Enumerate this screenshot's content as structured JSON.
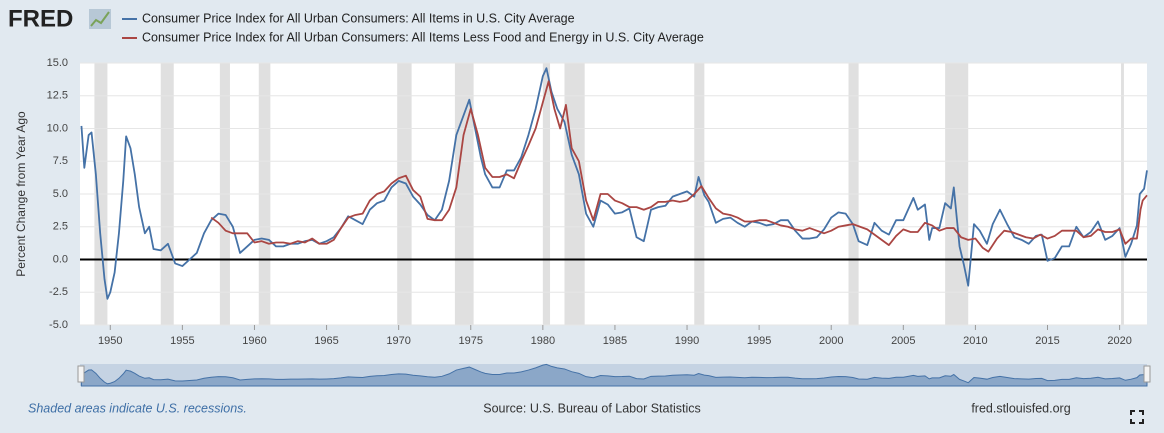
{
  "header": {
    "logo": "FRED"
  },
  "footer": {
    "recession_note": "Shaded areas indicate U.S. recessions.",
    "source": "Source: U.S. Bureau of Labor Statistics",
    "site": "fred.stlouisfed.org"
  },
  "chart_data": {
    "type": "line",
    "y_label": "Percent Change from Year Ago",
    "xlim": [
      1947.9,
      2021.9
    ],
    "xticks": [
      1950,
      1955,
      1960,
      1965,
      1970,
      1975,
      1980,
      1985,
      1990,
      1995,
      2000,
      2005,
      2010,
      2015,
      2020
    ],
    "ylim": [
      -5,
      15
    ],
    "yticks": [
      {
        "value": -5,
        "label": "-5.0"
      },
      {
        "value": -2.5,
        "label": "-2.5"
      },
      {
        "value": 0,
        "label": "0.0"
      },
      {
        "value": 2.5,
        "label": "2.5"
      },
      {
        "value": 5,
        "label": "5.0"
      },
      {
        "value": 7.5,
        "label": "7.5"
      },
      {
        "value": 10,
        "label": "10.0"
      },
      {
        "value": 12.5,
        "label": "12.5"
      },
      {
        "value": 15,
        "label": "15.0"
      }
    ],
    "grid": true,
    "recession_color": "#e0e0e0",
    "recessions": [
      [
        1948.9,
        1949.8
      ],
      [
        1953.5,
        1954.4
      ],
      [
        1957.6,
        1958.3
      ],
      [
        1960.3,
        1961.1
      ],
      [
        1969.9,
        1970.9
      ],
      [
        1973.9,
        1975.2
      ],
      [
        1980.0,
        1980.5
      ],
      [
        1981.5,
        1982.9
      ],
      [
        1990.5,
        1991.2
      ],
      [
        2001.2,
        2001.9
      ],
      [
        2007.9,
        2009.5
      ],
      [
        2020.1,
        2020.3
      ]
    ],
    "series": [
      {
        "name": "Consumer Price Index for All Urban Consumers: All Items in U.S. City Average",
        "color": "#4572a7",
        "x": [
          1948.0,
          1948.2,
          1948.5,
          1948.7,
          1949.0,
          1949.3,
          1949.6,
          1949.8,
          1950.0,
          1950.3,
          1950.6,
          1950.9,
          1951.1,
          1951.4,
          1951.7,
          1952.0,
          1952.4,
          1952.7,
          1953.0,
          1953.5,
          1954.0,
          1954.5,
          1955.0,
          1955.5,
          1956.0,
          1956.5,
          1957.0,
          1957.5,
          1958.0,
          1958.5,
          1959.0,
          1959.5,
          1960.0,
          1960.5,
          1961.0,
          1961.5,
          1962.0,
          1962.5,
          1963.0,
          1963.5,
          1964.0,
          1964.5,
          1965.0,
          1965.5,
          1966.0,
          1966.5,
          1967.0,
          1967.5,
          1968.0,
          1968.5,
          1969.0,
          1969.5,
          1970.0,
          1970.5,
          1971.0,
          1971.5,
          1972.0,
          1972.5,
          1973.0,
          1973.5,
          1974.0,
          1974.5,
          1974.9,
          1975.3,
          1975.7,
          1976.0,
          1976.5,
          1977.0,
          1977.5,
          1978.0,
          1978.5,
          1979.0,
          1979.5,
          1980.0,
          1980.25,
          1980.6,
          1981.0,
          1981.5,
          1982.0,
          1982.5,
          1983.0,
          1983.5,
          1984.0,
          1984.5,
          1985.0,
          1985.5,
          1986.0,
          1986.5,
          1987.0,
          1987.5,
          1988.0,
          1988.5,
          1989.0,
          1989.5,
          1990.0,
          1990.5,
          1990.8,
          1991.2,
          1991.5,
          1992.0,
          1992.5,
          1993.0,
          1993.5,
          1994.0,
          1994.5,
          1995.0,
          1995.5,
          1996.0,
          1996.5,
          1997.0,
          1997.5,
          1998.0,
          1998.5,
          1999.0,
          1999.5,
          2000.0,
          2000.5,
          2001.0,
          2001.5,
          2001.9,
          2002.5,
          2003.0,
          2003.5,
          2004.0,
          2004.5,
          2005.0,
          2005.7,
          2006.0,
          2006.5,
          2006.8,
          2007.0,
          2007.5,
          2007.9,
          2008.3,
          2008.5,
          2008.9,
          2009.2,
          2009.5,
          2009.9,
          2010.3,
          2010.8,
          2011.2,
          2011.7,
          2012.2,
          2012.7,
          2013.2,
          2013.7,
          2014.2,
          2014.6,
          2015.0,
          2015.5,
          2016.0,
          2016.5,
          2017.0,
          2017.5,
          2018.0,
          2018.5,
          2019.0,
          2019.5,
          2020.0,
          2020.4,
          2020.8,
          2021.2,
          2021.4,
          2021.7,
          2021.9
        ],
        "values": [
          10.2,
          7,
          9.5,
          9.7,
          6.5,
          2,
          -1.5,
          -3,
          -2.5,
          -1,
          2,
          6,
          9.4,
          8.5,
          6.5,
          4,
          2,
          2.5,
          0.8,
          0.7,
          1.2,
          -0.3,
          -0.5,
          0,
          0.5,
          2,
          3,
          3.5,
          3.4,
          2.5,
          0.5,
          1,
          1.5,
          1.6,
          1.5,
          1,
          1,
          1.2,
          1.2,
          1.4,
          1.5,
          1.2,
          1.4,
          1.7,
          2.4,
          3.3,
          3,
          2.7,
          3.8,
          4.3,
          4.5,
          5.5,
          6,
          5.8,
          4.8,
          4.2,
          3.4,
          3,
          3.8,
          6,
          9.5,
          11,
          12.2,
          10,
          7.8,
          6.5,
          5.5,
          5.5,
          6.8,
          6.8,
          7.8,
          9.5,
          11.5,
          14,
          14.6,
          12.8,
          11.5,
          10.5,
          8,
          6.5,
          3.5,
          2.5,
          4.5,
          4.2,
          3.5,
          3.6,
          3.9,
          1.7,
          1.4,
          3.8,
          4.0,
          4.1,
          4.8,
          5,
          5.2,
          4.8,
          6.3,
          4.9,
          4.4,
          2.8,
          3.1,
          3.2,
          2.8,
          2.5,
          2.9,
          2.8,
          2.6,
          2.7,
          3,
          3,
          2.2,
          1.6,
          1.6,
          1.7,
          2.3,
          3.2,
          3.6,
          3.5,
          2.7,
          1.4,
          1.1,
          2.8,
          2.2,
          1.9,
          3.0,
          3.0,
          4.7,
          3.8,
          4.2,
          1.5,
          2.4,
          2.4,
          4.3,
          3.9,
          5.5,
          1.0,
          -0.4,
          -2.0,
          2.7,
          2.2,
          1.2,
          2.7,
          3.8,
          2.7,
          1.7,
          1.5,
          1.2,
          1.8,
          1.9,
          -0.1,
          0.1,
          1.0,
          1.0,
          2.5,
          1.7,
          2.1,
          2.9,
          1.5,
          1.8,
          2.4,
          0.2,
          1.2,
          2.6,
          5.0,
          5.4,
          6.8
        ]
      },
      {
        "name": "Consumer Price Index for All Urban Consumers: All Items Less Food and Energy in U.S. City Average",
        "color": "#aa4643",
        "x": [
          1957.0,
          1957.5,
          1958.0,
          1958.5,
          1959.0,
          1959.5,
          1960.0,
          1960.5,
          1961.0,
          1961.5,
          1962.0,
          1962.5,
          1963.0,
          1963.5,
          1964.0,
          1964.5,
          1965.0,
          1965.5,
          1966.0,
          1966.5,
          1967.0,
          1967.5,
          1968.0,
          1968.5,
          1969.0,
          1969.5,
          1970.0,
          1970.5,
          1971.0,
          1971.5,
          1972.0,
          1972.5,
          1973.0,
          1973.5,
          1974.0,
          1974.5,
          1975.0,
          1975.5,
          1976.0,
          1976.5,
          1977.0,
          1977.5,
          1978.0,
          1978.5,
          1979.0,
          1979.5,
          1980.0,
          1980.4,
          1980.8,
          1981.2,
          1981.6,
          1982.0,
          1982.5,
          1983.0,
          1983.5,
          1984.0,
          1984.5,
          1985.0,
          1985.5,
          1986.0,
          1986.5,
          1987.0,
          1987.5,
          1988.0,
          1988.5,
          1989.0,
          1989.5,
          1990.0,
          1990.5,
          1991.0,
          1991.5,
          1992.0,
          1992.5,
          1993.0,
          1993.5,
          1994.0,
          1994.5,
          1995.0,
          1995.5,
          1996.0,
          1996.5,
          1997.0,
          1997.5,
          1998.0,
          1998.5,
          1999.0,
          1999.5,
          2000.0,
          2000.5,
          2001.0,
          2001.5,
          2002.0,
          2002.5,
          2003.0,
          2003.5,
          2004.0,
          2004.5,
          2005.0,
          2005.5,
          2006.0,
          2006.5,
          2007.0,
          2007.5,
          2008.0,
          2008.5,
          2009.0,
          2009.5,
          2010.0,
          2010.5,
          2010.9,
          2011.5,
          2012.0,
          2012.5,
          2013.0,
          2013.5,
          2014.0,
          2014.5,
          2015.0,
          2015.5,
          2016.0,
          2016.5,
          2017.0,
          2017.5,
          2018.0,
          2018.5,
          2019.0,
          2019.5,
          2020.0,
          2020.4,
          2020.8,
          2021.2,
          2021.45,
          2021.6,
          2021.9
        ],
        "values": [
          3.2,
          2.8,
          2.2,
          2,
          2,
          2,
          1.3,
          1.4,
          1.2,
          1.3,
          1.3,
          1.2,
          1.4,
          1.3,
          1.6,
          1.2,
          1.2,
          1.5,
          2.4,
          3.2,
          3.4,
          3.5,
          4.5,
          5,
          5.2,
          5.8,
          6.2,
          6.4,
          5.3,
          4.8,
          3.1,
          3,
          3.0,
          3.8,
          5.5,
          9.5,
          11.5,
          9.5,
          7,
          6.3,
          6.3,
          6.5,
          6.2,
          7.5,
          8.7,
          10.0,
          12,
          13.6,
          11.5,
          10,
          11.8,
          8.5,
          7.5,
          4.5,
          3,
          5,
          5,
          4.5,
          4.3,
          4,
          4.0,
          3.8,
          4.0,
          4.4,
          4.4,
          4.5,
          4.4,
          4.5,
          5.0,
          5.6,
          4.7,
          3.9,
          3.5,
          3.4,
          3.2,
          2.9,
          2.9,
          3.0,
          3.0,
          2.8,
          2.6,
          2.5,
          2.3,
          2.2,
          2.4,
          2.2,
          2.0,
          2.2,
          2.5,
          2.6,
          2.7,
          2.5,
          2.3,
          1.9,
          1.5,
          1.1,
          1.8,
          2.3,
          2.1,
          2.1,
          2.8,
          2.6,
          2.2,
          2.4,
          2.4,
          1.7,
          1.5,
          1.6,
          0.9,
          0.6,
          1.6,
          2.2,
          2.1,
          1.9,
          1.7,
          1.6,
          1.9,
          1.6,
          1.8,
          2.2,
          2.2,
          2.2,
          1.7,
          1.8,
          2.3,
          2.1,
          2.1,
          2.3,
          1.2,
          1.6,
          1.6,
          3.8,
          4.5,
          4.9
        ]
      }
    ]
  }
}
